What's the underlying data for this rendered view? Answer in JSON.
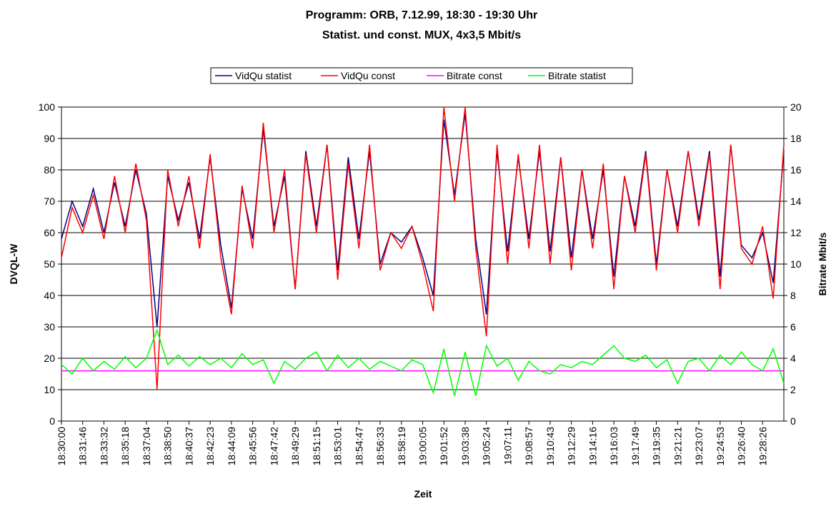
{
  "chart_data": {
    "type": "line",
    "title": "Programm: ORB, 7.12.99, 18:30 - 19:30 Uhr",
    "subtitle": "Statist. und const. MUX, 4x3,5 Mbit/s",
    "x_label": "Zeit",
    "y_label": "DVQL-W",
    "y2_label": "Bitrate Mbit/s",
    "categories": [
      "18:30:00",
      null,
      "18:31:46",
      null,
      "18:33:32",
      null,
      "18:35:18",
      null,
      "18:37:04",
      null,
      "18:38:50",
      null,
      "18:40:37",
      null,
      "18:42:23",
      null,
      "18:44:09",
      null,
      "18:45:56",
      null,
      "18:47:42",
      null,
      "18:49:29",
      null,
      "18:51:15",
      null,
      "18:53:01",
      null,
      "18:54:47",
      null,
      "18:56:33",
      null,
      "18:58:19",
      null,
      "19:00:05",
      null,
      "19:01:52",
      null,
      "19:03:38",
      null,
      "19:05:24",
      null,
      "19:07:11",
      null,
      "19:08:57",
      null,
      "19:10:43",
      null,
      "19:12:29",
      null,
      "19:14:16",
      null,
      "19:16:03",
      null,
      "19:17:49",
      null,
      "19:19:35",
      null,
      "19:21:21",
      null,
      "19:23:07",
      null,
      "19:24:53",
      null,
      "19:26:40",
      null,
      "19:28:26",
      null,
      null
    ],
    "series": [
      {
        "name": "VidQu statist",
        "color": "#000080",
        "values": [
          58,
          70,
          62,
          74,
          60,
          76,
          62,
          80,
          66,
          30,
          78,
          64,
          76,
          58,
          84,
          56,
          36,
          74,
          58,
          93,
          62,
          78,
          42,
          86,
          62,
          88,
          48,
          84,
          58,
          86,
          50,
          60,
          57,
          62,
          52,
          40,
          96,
          72,
          98,
          58,
          34,
          86,
          54,
          84,
          58,
          86,
          54,
          84,
          52,
          80,
          58,
          80,
          46,
          78,
          62,
          86,
          50,
          80,
          62,
          86,
          64,
          86,
          46,
          88,
          56,
          52,
          60,
          44,
          86
        ]
      },
      {
        "name": "VidQu const",
        "color": "#ff0000",
        "values": [
          52,
          68,
          60,
          72,
          58,
          78,
          60,
          82,
          64,
          10,
          80,
          62,
          78,
          55,
          85,
          52,
          34,
          75,
          55,
          95,
          60,
          80,
          42,
          85,
          60,
          88,
          45,
          82,
          55,
          88,
          48,
          60,
          55,
          62,
          50,
          35,
          100,
          70,
          100,
          55,
          27,
          88,
          50,
          85,
          55,
          88,
          50,
          84,
          48,
          80,
          55,
          82,
          42,
          78,
          60,
          85,
          48,
          80,
          60,
          86,
          62,
          85,
          42,
          88,
          55,
          50,
          62,
          39,
          88
        ]
      },
      {
        "name": "Bitrate const",
        "color": "#ff00ff",
        "axis": "y2",
        "values": [
          3.2,
          3.2,
          3.2,
          3.2,
          3.2,
          3.2,
          3.2,
          3.2,
          3.2,
          3.2,
          3.2,
          3.2,
          3.2,
          3.2,
          3.2,
          3.2,
          3.2,
          3.2,
          3.2,
          3.2,
          3.2,
          3.2,
          3.2,
          3.2,
          3.2,
          3.2,
          3.2,
          3.2,
          3.2,
          3.2,
          3.2,
          3.2,
          3.2,
          3.2,
          3.2,
          3.2,
          3.2,
          3.2,
          3.2,
          3.2,
          3.2,
          3.2,
          3.2,
          3.2,
          3.2,
          3.2,
          3.2,
          3.2,
          3.2,
          3.2,
          3.2,
          3.2,
          3.2,
          3.2,
          3.2,
          3.2,
          3.2,
          3.2,
          3.2,
          3.2,
          3.2,
          3.2,
          3.2,
          3.2,
          3.2,
          3.2,
          3.2,
          3.2,
          3.2
        ]
      },
      {
        "name": "Bitrate statist",
        "color": "#00ff00",
        "axis": "y2",
        "values": [
          3.6,
          3.0,
          4.0,
          3.2,
          3.8,
          3.3,
          4.1,
          3.4,
          4.0,
          5.8,
          3.6,
          4.2,
          3.5,
          4.1,
          3.6,
          4.0,
          3.4,
          4.3,
          3.6,
          3.9,
          2.4,
          3.8,
          3.3,
          4.0,
          4.4,
          3.2,
          4.2,
          3.4,
          4.0,
          3.3,
          3.8,
          3.5,
          3.2,
          3.9,
          3.6,
          1.8,
          4.6,
          1.6,
          4.4,
          1.6,
          4.8,
          3.5,
          4.0,
          2.6,
          3.8,
          3.2,
          3.0,
          3.6,
          3.4,
          3.8,
          3.6,
          4.2,
          4.8,
          4.0,
          3.8,
          4.2,
          3.4,
          3.9,
          2.4,
          3.8,
          4.0,
          3.2,
          4.2,
          3.6,
          4.4,
          3.6,
          3.2,
          4.6,
          2.4
        ]
      }
    ],
    "ylim": [
      0,
      100
    ],
    "yticks": [
      0,
      10,
      20,
      30,
      40,
      50,
      60,
      70,
      80,
      90,
      100
    ],
    "y2lim": [
      0,
      20
    ],
    "y2ticks": [
      0,
      2,
      4,
      6,
      8,
      10,
      12,
      14,
      16,
      18,
      20
    ],
    "grid": true,
    "legend": "top"
  }
}
